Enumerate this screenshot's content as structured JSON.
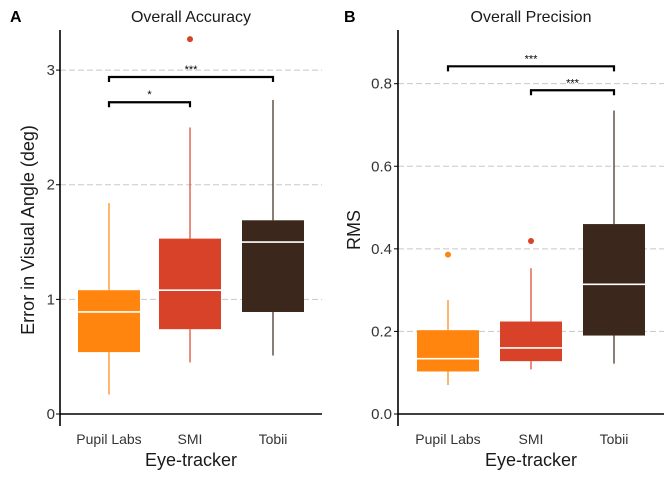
{
  "colors": {
    "pupil_labs": "#ff850f",
    "smi": "#d84228",
    "tobii": "#3c271c",
    "median": "#ffffff",
    "grid": "#c8c8c8",
    "axis": "#000000"
  },
  "chart_data": [
    {
      "panel": "A",
      "type": "box",
      "title": "Overall Accuracy",
      "xlabel": "Eye-tracker",
      "ylabel": "Error in Visual Angle (deg)",
      "ylim": [
        0,
        3.35
      ],
      "yticks": [
        "0",
        "1",
        "2",
        "3"
      ],
      "ytick_values": [
        0,
        1,
        2,
        3
      ],
      "grid_y": [
        1,
        2,
        3
      ],
      "categories": [
        "Pupil Labs",
        "SMI",
        "Tobii"
      ],
      "boxes": [
        {
          "category": "Pupil Labs",
          "min": 0.17,
          "q1": 0.54,
          "median": 0.89,
          "q3": 1.08,
          "max": 1.84,
          "outliers": []
        },
        {
          "category": "SMI",
          "min": 0.45,
          "q1": 0.74,
          "median": 1.08,
          "q3": 1.53,
          "max": 2.5,
          "outliers": [
            3.27
          ]
        },
        {
          "category": "Tobii",
          "min": 0.51,
          "q1": 0.89,
          "median": 1.5,
          "q3": 1.69,
          "max": 2.74,
          "outliers": []
        }
      ],
      "significance": [
        {
          "from": "Pupil Labs",
          "to": "SMI",
          "y": 2.72,
          "label": "*"
        },
        {
          "from": "Pupil Labs",
          "to": "Tobii",
          "y": 2.94,
          "label": "***"
        }
      ]
    },
    {
      "panel": "B",
      "type": "box",
      "title": "Overall Precision",
      "xlabel": "Eye-tracker",
      "ylabel": "RMS",
      "ylim": [
        0,
        0.93
      ],
      "yticks": [
        "0.0",
        "0.2",
        "0.4",
        "0.6",
        "0.8"
      ],
      "ytick_values": [
        0,
        0.2,
        0.4,
        0.6,
        0.8
      ],
      "grid_y": [
        0.2,
        0.4,
        0.6,
        0.8
      ],
      "categories": [
        "Pupil Labs",
        "SMI",
        "Tobii"
      ],
      "boxes": [
        {
          "category": "Pupil Labs",
          "min": 0.07,
          "q1": 0.103,
          "median": 0.134,
          "q3": 0.203,
          "max": 0.276,
          "outliers": [
            0.386
          ]
        },
        {
          "category": "SMI",
          "min": 0.108,
          "q1": 0.128,
          "median": 0.16,
          "q3": 0.224,
          "max": 0.353,
          "outliers": [
            0.419
          ]
        },
        {
          "category": "Tobii",
          "min": 0.122,
          "q1": 0.19,
          "median": 0.314,
          "q3": 0.46,
          "max": 0.735,
          "outliers": []
        }
      ],
      "significance": [
        {
          "from": "Pupil Labs",
          "to": "Tobii",
          "y": 0.842,
          "label": "***"
        },
        {
          "from": "SMI",
          "to": "Tobii",
          "y": 0.784,
          "label": "***"
        }
      ]
    }
  ]
}
